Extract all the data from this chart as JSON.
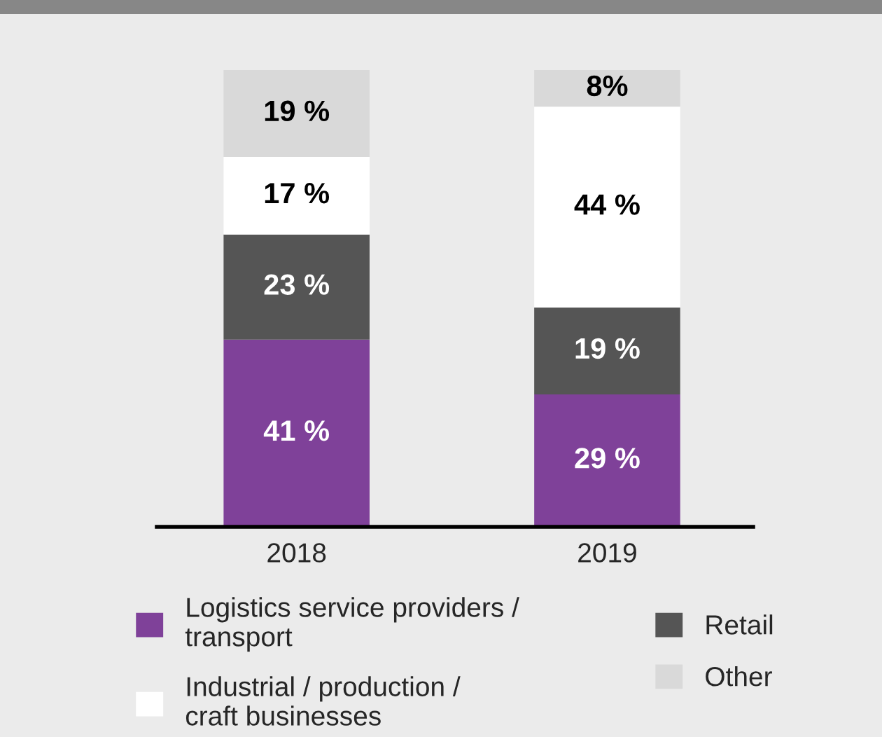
{
  "chart_data": {
    "type": "bar",
    "stacked": true,
    "categories": [
      "2018",
      "2019"
    ],
    "series": [
      {
        "name": "Logistics service providers / transport",
        "color": "#7f4199",
        "values": [
          41,
          29
        ],
        "value_labels": [
          "41 %",
          "29 %"
        ]
      },
      {
        "name": "Retail",
        "color": "#555555",
        "values": [
          23,
          19
        ],
        "value_labels": [
          "23 %",
          "19 %"
        ]
      },
      {
        "name": "Industrial / production / craft businesses",
        "color": "#ffffff",
        "values": [
          17,
          44
        ],
        "value_labels": [
          "17 %",
          "44 %"
        ]
      },
      {
        "name": "Other",
        "color": "#d9d9d9",
        "values": [
          19,
          8
        ],
        "value_labels": [
          "19 %",
          "8%"
        ]
      }
    ],
    "legend": "bottom",
    "grid": false
  }
}
